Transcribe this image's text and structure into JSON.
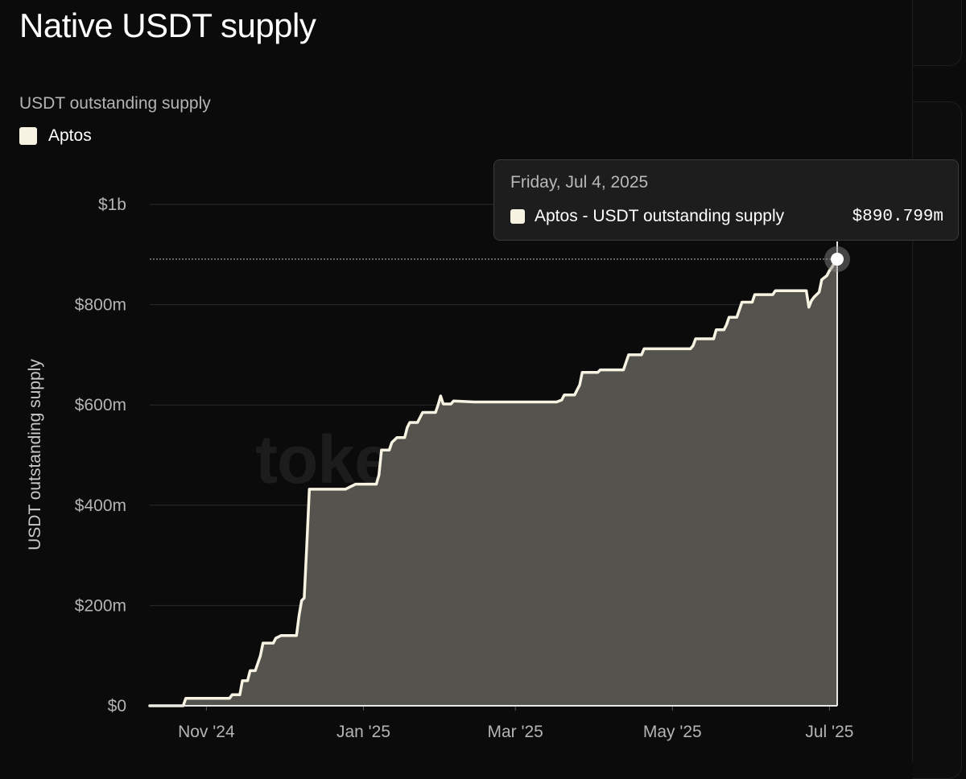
{
  "header": {
    "title": "Native USDT supply",
    "subtitle": "USDT outstanding supply"
  },
  "legend": {
    "items": [
      {
        "label": "Aptos",
        "color": "#f7f3e3"
      }
    ]
  },
  "watermark": "token terminal_",
  "tooltip": {
    "date": "Friday, Jul 4, 2025",
    "series": "Aptos - USDT outstanding supply",
    "value": "$890.799m"
  },
  "colors": {
    "background": "#0b0b0b",
    "line": "#f7f3e3",
    "area": "#55534d",
    "grid": "#2b2b2b"
  },
  "chart_data": {
    "type": "area",
    "title": "Native USDT supply",
    "subtitle": "USDT outstanding supply",
    "ylabel": "USDT outstanding supply",
    "xlabel": "",
    "ylim": [
      0,
      1000
    ],
    "yunit": "$m",
    "xlim": [
      "2024-10-10",
      "2025-07-04"
    ],
    "y_ticks": [
      {
        "value": 0,
        "label": "$0"
      },
      {
        "value": 200,
        "label": "$200m"
      },
      {
        "value": 400,
        "label": "$400m"
      },
      {
        "value": 600,
        "label": "$600m"
      },
      {
        "value": 800,
        "label": "$800m"
      },
      {
        "value": 1000,
        "label": "$1b"
      }
    ],
    "x_ticks": [
      {
        "date": "2024-11-01",
        "label": "Nov '24"
      },
      {
        "date": "2025-01-01",
        "label": "Jan '25"
      },
      {
        "date": "2025-03-01",
        "label": "Mar '25"
      },
      {
        "date": "2025-05-01",
        "label": "May '25"
      },
      {
        "date": "2025-07-01",
        "label": "Jul '25"
      }
    ],
    "grid": true,
    "legend": "top-left",
    "series": [
      {
        "name": "Aptos",
        "points": [
          [
            "2024-10-10",
            0
          ],
          [
            "2024-10-23",
            0
          ],
          [
            "2024-10-24",
            15
          ],
          [
            "2024-11-10",
            15
          ],
          [
            "2024-11-11",
            22
          ],
          [
            "2024-11-14",
            22
          ],
          [
            "2024-11-15",
            50
          ],
          [
            "2024-11-17",
            50
          ],
          [
            "2024-11-18",
            70
          ],
          [
            "2024-11-20",
            70
          ],
          [
            "2024-11-22",
            100
          ],
          [
            "2024-11-23",
            125
          ],
          [
            "2024-11-27",
            125
          ],
          [
            "2024-11-28",
            135
          ],
          [
            "2024-11-30",
            140
          ],
          [
            "2024-12-06",
            140
          ],
          [
            "2024-12-07",
            180
          ],
          [
            "2024-12-08",
            210
          ],
          [
            "2024-12-09",
            215
          ],
          [
            "2024-12-10",
            320
          ],
          [
            "2024-12-11",
            432
          ],
          [
            "2024-12-25",
            432
          ],
          [
            "2024-12-27",
            437
          ],
          [
            "2024-12-29",
            442
          ],
          [
            "2025-01-06",
            442
          ],
          [
            "2025-01-07",
            460
          ],
          [
            "2025-01-08",
            510
          ],
          [
            "2025-01-11",
            510
          ],
          [
            "2025-01-12",
            525
          ],
          [
            "2025-01-14",
            535
          ],
          [
            "2025-01-17",
            535
          ],
          [
            "2025-01-18",
            555
          ],
          [
            "2025-01-19",
            565
          ],
          [
            "2025-01-22",
            565
          ],
          [
            "2025-01-24",
            585
          ],
          [
            "2025-01-29",
            585
          ],
          [
            "2025-01-30",
            600
          ],
          [
            "2025-01-31",
            618
          ],
          [
            "2025-02-01",
            602
          ],
          [
            "2025-02-04",
            602
          ],
          [
            "2025-02-05",
            608
          ],
          [
            "2025-02-13",
            606
          ],
          [
            "2025-02-20",
            606
          ],
          [
            "2025-03-01",
            606
          ],
          [
            "2025-03-10",
            606
          ],
          [
            "2025-03-17",
            606
          ],
          [
            "2025-03-19",
            610
          ],
          [
            "2025-03-20",
            620
          ],
          [
            "2025-03-24",
            620
          ],
          [
            "2025-03-26",
            640
          ],
          [
            "2025-03-27",
            665
          ],
          [
            "2025-04-02",
            665
          ],
          [
            "2025-04-03",
            670
          ],
          [
            "2025-04-12",
            670
          ],
          [
            "2025-04-13",
            685
          ],
          [
            "2025-04-14",
            700
          ],
          [
            "2025-04-19",
            700
          ],
          [
            "2025-04-20",
            712
          ],
          [
            "2025-05-08",
            712
          ],
          [
            "2025-05-09",
            718
          ],
          [
            "2025-05-10",
            732
          ],
          [
            "2025-05-17",
            732
          ],
          [
            "2025-05-18",
            750
          ],
          [
            "2025-05-21",
            750
          ],
          [
            "2025-05-22",
            760
          ],
          [
            "2025-05-23",
            775
          ],
          [
            "2025-05-26",
            775
          ],
          [
            "2025-05-27",
            790
          ],
          [
            "2025-05-28",
            805
          ],
          [
            "2025-06-01",
            805
          ],
          [
            "2025-06-02",
            820
          ],
          [
            "2025-06-09",
            820
          ],
          [
            "2025-06-10",
            828
          ],
          [
            "2025-06-22",
            828
          ],
          [
            "2025-06-23",
            795
          ],
          [
            "2025-06-24",
            808
          ],
          [
            "2025-06-25",
            815
          ],
          [
            "2025-06-27",
            825
          ],
          [
            "2025-06-28",
            850
          ],
          [
            "2025-06-30",
            858
          ],
          [
            "2025-07-01",
            868
          ],
          [
            "2025-07-02",
            875
          ],
          [
            "2025-07-03",
            884
          ],
          [
            "2025-07-04",
            890.799
          ]
        ]
      }
    ]
  }
}
